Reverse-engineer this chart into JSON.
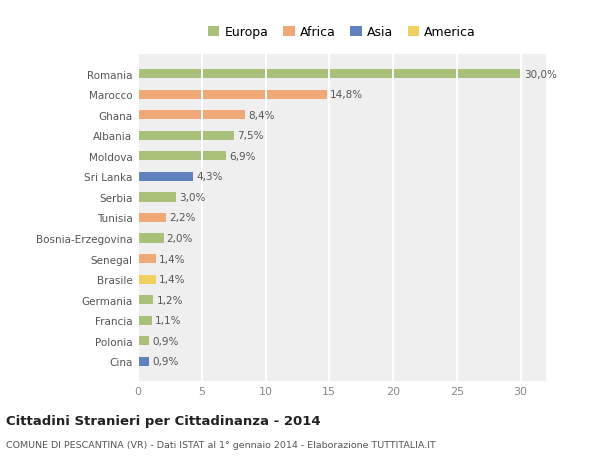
{
  "countries": [
    "Romania",
    "Marocco",
    "Ghana",
    "Albania",
    "Moldova",
    "Sri Lanka",
    "Serbia",
    "Tunisia",
    "Bosnia-Erzegovina",
    "Senegal",
    "Brasile",
    "Germania",
    "Francia",
    "Polonia",
    "Cina"
  ],
  "values": [
    30.0,
    14.8,
    8.4,
    7.5,
    6.9,
    4.3,
    3.0,
    2.2,
    2.0,
    1.4,
    1.4,
    1.2,
    1.1,
    0.9,
    0.9
  ],
  "continents": [
    "Europa",
    "Africa",
    "Africa",
    "Europa",
    "Europa",
    "Asia",
    "Europa",
    "Africa",
    "Europa",
    "Africa",
    "America",
    "Europa",
    "Europa",
    "Europa",
    "Asia"
  ],
  "labels": [
    "30,0%",
    "14,8%",
    "8,4%",
    "7,5%",
    "6,9%",
    "4,3%",
    "3,0%",
    "2,2%",
    "2,0%",
    "1,4%",
    "1,4%",
    "1,2%",
    "1,1%",
    "0,9%",
    "0,9%"
  ],
  "colors": {
    "Europa": "#a8c07a",
    "Africa": "#f0a878",
    "Asia": "#6080c0",
    "America": "#f0d060"
  },
  "legend_order": [
    "Europa",
    "Africa",
    "Asia",
    "America"
  ],
  "title": "Cittadini Stranieri per Cittadinanza - 2014",
  "subtitle": "COMUNE DI PESCANTINA (VR) - Dati ISTAT al 1° gennaio 2014 - Elaborazione TUTTITALIA.IT",
  "xlim": [
    0,
    32
  ],
  "xticks": [
    0,
    5,
    10,
    15,
    20,
    25,
    30
  ],
  "bg_color": "#ffffff",
  "plot_bg_color": "#efefef",
  "grid_color": "#ffffff",
  "bar_height": 0.45
}
